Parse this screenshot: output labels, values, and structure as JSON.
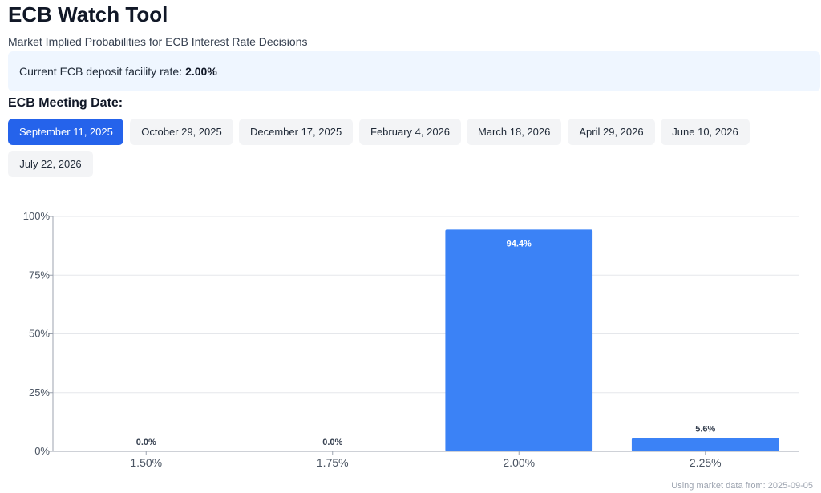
{
  "header": {
    "title": "ECB Watch Tool",
    "subtitle": "Market Implied Probabilities for ECB Interest Rate Decisions"
  },
  "rate_info": {
    "label": "Current ECB deposit facility rate:",
    "value": "2.00%"
  },
  "meeting_selector": {
    "label": "ECB Meeting Date:",
    "selected": "September 11, 2025",
    "dates": [
      "September 11, 2025",
      "October 29, 2025",
      "December 17, 2025",
      "February 4, 2026",
      "March 18, 2026",
      "April 29, 2026",
      "June 10, 2026",
      "July 22, 2026"
    ]
  },
  "colors": {
    "accent": "#2563eb",
    "bar": "#3b82f6",
    "button_bg": "#f3f4f6",
    "info_bg": "#eff6ff"
  },
  "chart_data": {
    "type": "bar",
    "categories": [
      "1.50%",
      "1.75%",
      "2.00%",
      "2.25%"
    ],
    "values": [
      0.0,
      0.0,
      94.4,
      5.6
    ],
    "data_labels": [
      "0.0%",
      "0.0%",
      "94.4%",
      "5.6%"
    ],
    "y_ticks": [
      "0%",
      "25%",
      "50%",
      "75%",
      "100%"
    ],
    "ylim": [
      0,
      100
    ],
    "grid": true
  },
  "footer": {
    "note": "Using market data from: 2025-09-05"
  }
}
